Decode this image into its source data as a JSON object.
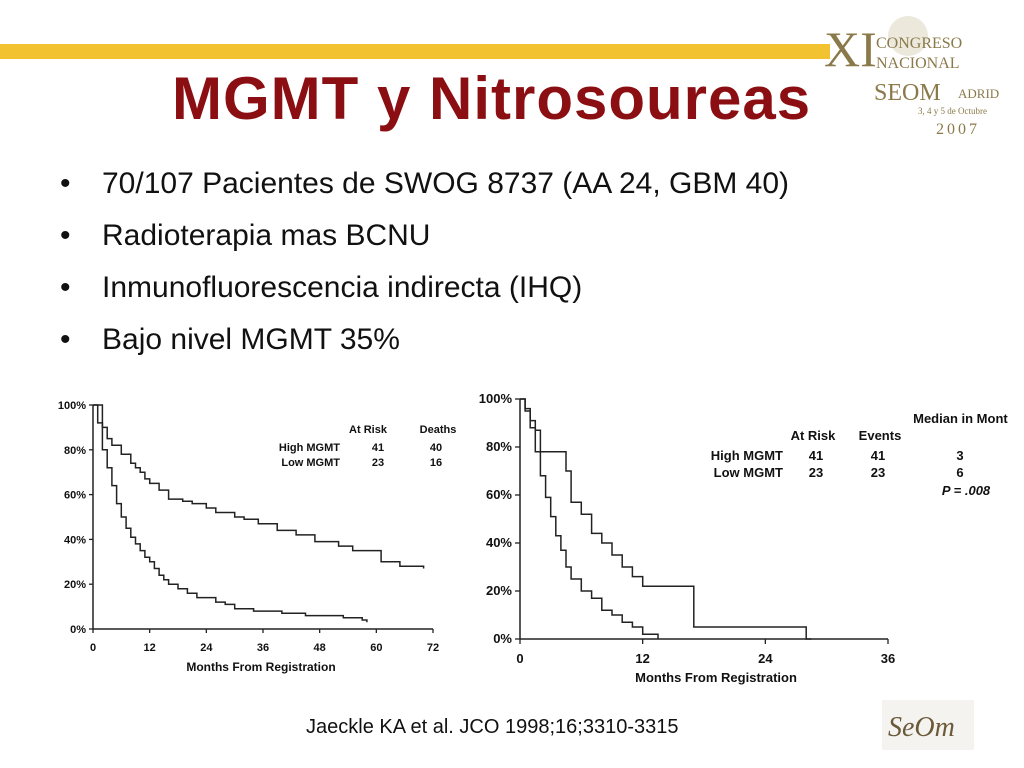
{
  "slide": {
    "title": "MGMT y Nitrosoureas",
    "bullets": [
      "70/107 Pacientes de SWOG 8737 (AA 24, GBM 40)",
      "Radioterapia mas BCNU",
      "Inmunofluorescencia indirecta (IHQ)",
      "Bajo nivel MGMT 35%"
    ],
    "citation": "Jaeckle KA et al. JCO 1998;16;3310-3315",
    "logo": {
      "big_letters": "XI",
      "line1": "CONGRESO",
      "line2": "NACIONAL",
      "brand_left": "SEOM",
      "brand_right": "ADRID",
      "date_line": "3, 4 y 5 de Octubre",
      "year": "2007"
    },
    "seom_logo_text": "SeOm",
    "colors": {
      "title": "#8b0f12",
      "topbar": "#f2c230",
      "logo": "#8a7a4a"
    }
  },
  "chart_data": [
    {
      "type": "line",
      "subtype": "kaplan-meier",
      "xlabel": "Months From Registration",
      "ylabel": "",
      "xlim": [
        0,
        72
      ],
      "ylim": [
        0,
        100
      ],
      "xticks": [
        "0",
        "12",
        "24",
        "36",
        "48",
        "60",
        "72"
      ],
      "yticks": [
        "0%",
        "20%",
        "40%",
        "60%",
        "80%",
        "100%"
      ],
      "table": {
        "headers": [
          "",
          "At Risk",
          "Deaths"
        ],
        "rows": [
          [
            "High MGMT",
            "41",
            "40"
          ],
          [
            "Low MGMT",
            "23",
            "16"
          ]
        ]
      },
      "series": [
        {
          "name": "Low MGMT",
          "x": [
            0,
            2,
            3,
            4,
            6,
            8,
            9,
            10,
            11,
            12,
            14,
            16,
            19,
            21,
            24,
            26,
            30,
            32,
            35,
            39,
            43,
            47,
            52,
            55,
            61,
            65,
            70
          ],
          "y": [
            100,
            90,
            85,
            82,
            78,
            74,
            72,
            70,
            67,
            65,
            62,
            58,
            57,
            56,
            54,
            52,
            50,
            49,
            47,
            44,
            42,
            39,
            37,
            35,
            30,
            28,
            27
          ]
        },
        {
          "name": "High MGMT",
          "x": [
            0,
            1,
            2,
            3,
            4,
            5,
            6,
            7,
            8,
            9,
            10,
            11,
            12,
            13,
            14,
            15,
            16,
            18,
            20,
            22,
            26,
            28,
            30,
            34,
            40,
            45,
            50,
            53,
            57,
            58
          ],
          "y": [
            100,
            92,
            80,
            72,
            64,
            56,
            50,
            45,
            41,
            38,
            35,
            32,
            30,
            27,
            24,
            22,
            20,
            18,
            16,
            14,
            12,
            11,
            9,
            8,
            7,
            6,
            6,
            5,
            4,
            3
          ]
        }
      ]
    },
    {
      "type": "line",
      "subtype": "kaplan-meier",
      "xlabel": "Months From Registration",
      "ylabel": "",
      "xlim": [
        0,
        36
      ],
      "ylim": [
        0,
        100
      ],
      "xticks": [
        "0",
        "12",
        "24",
        "36"
      ],
      "yticks": [
        "0%",
        "20%",
        "40%",
        "60%",
        "80%",
        "100%"
      ],
      "table": {
        "headers": [
          "",
          "At Risk",
          "Events",
          "Median in Months"
        ],
        "rows": [
          [
            "High MGMT",
            "41",
            "41",
            "3"
          ],
          [
            "Low MGMT",
            "23",
            "23",
            "6"
          ]
        ]
      },
      "pvalue": "P = .008",
      "series": [
        {
          "name": "Low MGMT",
          "x": [
            0,
            0.5,
            1,
            1.5,
            2,
            3.5,
            4.5,
            5,
            6,
            7,
            8,
            9,
            10,
            11,
            12,
            17,
            28,
            28.5
          ],
          "y": [
            100,
            96,
            91,
            87,
            78,
            78,
            70,
            57,
            52,
            44,
            40,
            35,
            30,
            26,
            22,
            5,
            0,
            0
          ]
        },
        {
          "name": "High MGMT",
          "x": [
            0,
            0.5,
            1,
            1.5,
            2,
            2.5,
            3,
            3.5,
            4,
            4.5,
            5,
            6,
            7,
            8,
            9,
            10,
            11,
            12,
            13.5
          ],
          "y": [
            100,
            95,
            88,
            78,
            68,
            59,
            51,
            43,
            37,
            30,
            25,
            20,
            17,
            12,
            10,
            7,
            5,
            2,
            0
          ]
        }
      ]
    }
  ]
}
